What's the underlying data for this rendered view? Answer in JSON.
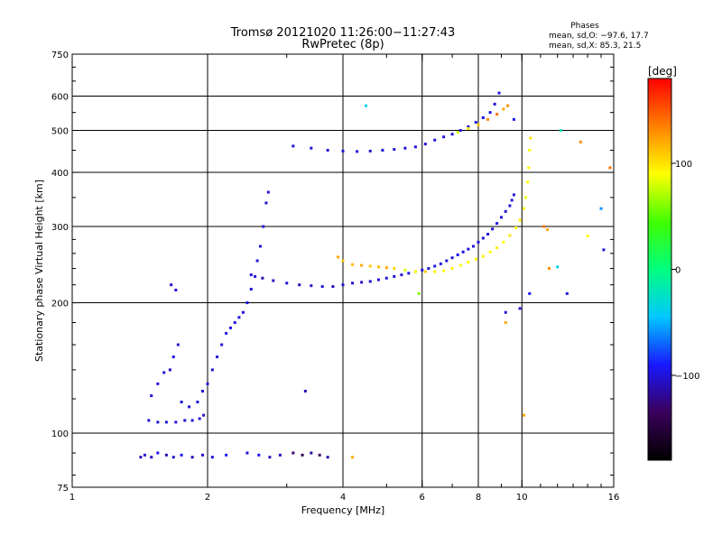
{
  "header": {
    "title_line1": "Tromsø 20121020 11:26:00−11:27:43",
    "title_line2": "RwPretec (8p)",
    "stats_title": "Phases",
    "stats_o": "mean, sd,O: −97.6, 17.7",
    "stats_x": "mean, sd,X:  85.3, 21.5"
  },
  "colorbar": {
    "label": "[deg]",
    "ticks": [
      {
        "value": 100,
        "label": "100"
      },
      {
        "value": 0,
        "label": "0"
      },
      {
        "value": -100,
        "label": "−100"
      }
    ],
    "range": [
      -180,
      180
    ],
    "stops": [
      "#000000",
      "#3a005a",
      "#1818ff",
      "#00c8ff",
      "#00ff7f",
      "#40ff00",
      "#ffff00",
      "#ff8000",
      "#ff0000"
    ]
  },
  "chart_data": {
    "type": "scatter",
    "xlabel": "Frequency [MHz]",
    "ylabel": "Stationary phase Virtual Height [km]",
    "xscale": "log",
    "yscale": "log",
    "xlim": [
      1,
      16
    ],
    "ylim": [
      75,
      750
    ],
    "xticks": [
      {
        "value": 1,
        "label": "1",
        "grid": false
      },
      {
        "value": 2,
        "label": "2",
        "grid": true
      },
      {
        "value": 4,
        "label": "4",
        "grid": true
      },
      {
        "value": 6,
        "label": "6",
        "grid": true
      },
      {
        "value": 8,
        "label": "8",
        "grid": true
      },
      {
        "value": 10,
        "label": "10",
        "grid": true
      },
      {
        "value": 16,
        "label": "16",
        "grid": false
      }
    ],
    "yticks": [
      {
        "value": 75,
        "label": "75",
        "grid": false
      },
      {
        "value": 100,
        "label": "100",
        "grid": true
      },
      {
        "value": 200,
        "label": "200",
        "grid": true
      },
      {
        "value": 300,
        "label": "300",
        "grid": true
      },
      {
        "value": 400,
        "label": "400",
        "grid": true
      },
      {
        "value": 500,
        "label": "500",
        "grid": true
      },
      {
        "value": 600,
        "label": "600",
        "grid": true
      },
      {
        "value": 750,
        "label": "750",
        "grid": false
      }
    ],
    "color_variable": "phase [deg]",
    "series": [
      {
        "points": [
          [
            1.42,
            88,
            -110
          ],
          [
            1.45,
            89,
            -100
          ],
          [
            1.5,
            88,
            -105
          ],
          [
            1.55,
            90,
            -95
          ],
          [
            1.62,
            89,
            -110
          ],
          [
            1.68,
            88,
            -100
          ],
          [
            1.75,
            89,
            -95
          ],
          [
            1.85,
            88,
            -110
          ],
          [
            1.95,
            89,
            -105
          ],
          [
            2.05,
            88,
            -100
          ],
          [
            2.2,
            89,
            -90
          ],
          [
            2.45,
            90,
            -100
          ],
          [
            2.6,
            89,
            -95
          ],
          [
            2.75,
            88,
            -105
          ],
          [
            2.9,
            89,
            -110
          ],
          [
            3.1,
            90,
            -130
          ],
          [
            3.25,
            89,
            -140
          ],
          [
            3.4,
            90,
            -120
          ],
          [
            3.55,
            89,
            -135
          ],
          [
            3.7,
            88,
            -110
          ]
        ]
      },
      {
        "points": [
          [
            1.48,
            107,
            -100
          ],
          [
            1.55,
            106,
            -100
          ],
          [
            1.62,
            106,
            -100
          ],
          [
            1.7,
            106,
            -100
          ],
          [
            1.78,
            107,
            -100
          ],
          [
            1.85,
            107,
            -100
          ],
          [
            1.92,
            108,
            -100
          ],
          [
            1.96,
            110,
            -105
          ]
        ]
      },
      {
        "points": [
          [
            1.5,
            122,
            -100
          ],
          [
            1.55,
            130,
            -100
          ],
          [
            1.6,
            138,
            -100
          ],
          [
            1.65,
            140,
            -105
          ],
          [
            1.68,
            150,
            -100
          ],
          [
            1.72,
            160,
            -100
          ],
          [
            1.66,
            220,
            -105
          ],
          [
            1.7,
            214,
            -100
          ],
          [
            1.75,
            118,
            -100
          ],
          [
            1.82,
            115,
            -100
          ],
          [
            1.9,
            118,
            -100
          ],
          [
            1.95,
            125,
            -100
          ],
          [
            2.0,
            130,
            -100
          ],
          [
            2.05,
            140,
            -100
          ],
          [
            2.1,
            150,
            -100
          ],
          [
            2.15,
            160,
            -100
          ],
          [
            2.2,
            170,
            -100
          ],
          [
            2.25,
            175,
            -100
          ],
          [
            2.3,
            180,
            -100
          ],
          [
            2.35,
            185,
            -100
          ],
          [
            2.4,
            190,
            -100
          ],
          [
            2.45,
            200,
            -100
          ],
          [
            2.5,
            215,
            -100
          ],
          [
            2.55,
            230,
            -100
          ],
          [
            2.58,
            250,
            -100
          ],
          [
            2.62,
            270,
            -100
          ],
          [
            2.66,
            300,
            -100
          ],
          [
            2.7,
            340,
            -100
          ],
          [
            2.73,
            360,
            -100
          ]
        ]
      },
      {
        "points": [
          [
            2.5,
            232,
            -100
          ],
          [
            2.65,
            228,
            -110
          ],
          [
            2.8,
            225,
            -105
          ],
          [
            3.0,
            222,
            -100
          ],
          [
            3.2,
            220,
            -110
          ],
          [
            3.4,
            219,
            -105
          ],
          [
            3.6,
            218,
            -100
          ],
          [
            3.8,
            218,
            -110
          ],
          [
            4.0,
            220,
            -100
          ],
          [
            4.2,
            222,
            -100
          ],
          [
            4.4,
            223,
            -105
          ],
          [
            4.6,
            224,
            -100
          ],
          [
            4.8,
            226,
            -100
          ],
          [
            5.0,
            228,
            -100
          ],
          [
            5.2,
            230,
            -100
          ],
          [
            5.4,
            232,
            -100
          ],
          [
            5.6,
            234,
            -100
          ],
          [
            5.8,
            236,
            -100
          ],
          [
            6.0,
            238,
            -100
          ],
          [
            6.2,
            240,
            -100
          ],
          [
            6.4,
            243,
            -100
          ],
          [
            6.6,
            246,
            -100
          ],
          [
            6.8,
            250,
            -100
          ],
          [
            7.0,
            254,
            -100
          ],
          [
            7.2,
            258,
            -100
          ],
          [
            7.4,
            262,
            -100
          ],
          [
            7.6,
            266,
            -100
          ],
          [
            7.8,
            270,
            -100
          ],
          [
            8.0,
            276,
            -100
          ],
          [
            8.2,
            282,
            -100
          ],
          [
            8.4,
            288,
            -100
          ],
          [
            8.6,
            296,
            -100
          ],
          [
            8.8,
            305,
            -100
          ],
          [
            9.0,
            315,
            -100
          ],
          [
            9.2,
            325,
            -100
          ],
          [
            9.4,
            335,
            -100
          ],
          [
            9.5,
            345,
            -100
          ],
          [
            9.6,
            355,
            -100
          ]
        ]
      },
      {
        "points": [
          [
            3.9,
            255,
            120
          ],
          [
            4.0,
            250,
            110
          ],
          [
            4.2,
            245,
            115
          ],
          [
            4.4,
            244,
            120
          ],
          [
            4.6,
            243,
            110
          ],
          [
            4.8,
            242,
            115
          ],
          [
            5.0,
            241,
            120
          ],
          [
            5.2,
            240,
            105
          ],
          [
            5.5,
            238,
            80
          ],
          [
            5.8,
            236,
            90
          ],
          [
            6.1,
            236,
            110
          ],
          [
            6.4,
            236,
            95
          ],
          [
            6.7,
            237,
            90
          ],
          [
            7.0,
            240,
            95
          ],
          [
            7.3,
            244,
            90
          ],
          [
            7.6,
            248,
            90
          ],
          [
            7.9,
            252,
            90
          ],
          [
            8.2,
            256,
            95
          ],
          [
            8.5,
            262,
            90
          ],
          [
            8.8,
            268,
            95
          ],
          [
            9.1,
            276,
            90
          ],
          [
            9.4,
            286,
            100
          ],
          [
            9.7,
            298,
            90
          ],
          [
            9.9,
            310,
            95
          ],
          [
            10.1,
            330,
            90
          ],
          [
            10.2,
            350,
            85
          ],
          [
            10.3,
            380,
            90
          ],
          [
            10.35,
            410,
            95
          ],
          [
            10.4,
            450,
            90
          ],
          [
            10.45,
            480,
            100
          ]
        ]
      },
      {
        "points": [
          [
            3.1,
            460,
            -100
          ],
          [
            3.4,
            455,
            -100
          ],
          [
            3.7,
            450,
            -100
          ],
          [
            4.0,
            448,
            -100
          ],
          [
            4.3,
            447,
            -100
          ],
          [
            4.6,
            448,
            -100
          ],
          [
            4.9,
            450,
            -100
          ],
          [
            5.2,
            452,
            -100
          ],
          [
            5.5,
            455,
            -100
          ],
          [
            5.8,
            458,
            -100
          ],
          [
            6.1,
            465,
            -100
          ],
          [
            6.4,
            475,
            -100
          ],
          [
            6.7,
            483,
            -100
          ],
          [
            7.0,
            490,
            -100
          ],
          [
            7.3,
            500,
            -100
          ],
          [
            7.6,
            510,
            -100
          ],
          [
            7.9,
            522,
            -100
          ],
          [
            8.2,
            535,
            -100
          ],
          [
            8.5,
            550,
            -100
          ],
          [
            8.7,
            575,
            -100
          ],
          [
            8.9,
            610,
            -100
          ]
        ]
      },
      {
        "points": [
          [
            7.2,
            495,
            80
          ],
          [
            7.6,
            505,
            100
          ],
          [
            8.0,
            515,
            110
          ],
          [
            8.4,
            530,
            130
          ],
          [
            8.8,
            545,
            140
          ],
          [
            9.1,
            560,
            120
          ],
          [
            9.3,
            570,
            130
          ]
        ]
      },
      {
        "points": [
          [
            4.5,
            570,
            -40
          ],
          [
            3.3,
            125,
            -110
          ],
          [
            4.2,
            88,
            120
          ],
          [
            5.9,
            210,
            60
          ],
          [
            9.2,
            190,
            -100
          ],
          [
            9.2,
            180,
            120
          ],
          [
            9.9,
            194,
            -100
          ],
          [
            10.1,
            110,
            120
          ],
          [
            10.4,
            210,
            -90
          ],
          [
            11.2,
            300,
            140
          ],
          [
            11.4,
            295,
            120
          ],
          [
            11.5,
            240,
            130
          ],
          [
            12.0,
            242,
            -40
          ],
          [
            12.2,
            500,
            -20
          ],
          [
            12.6,
            210,
            -100
          ],
          [
            13.5,
            470,
            130
          ],
          [
            14.0,
            285,
            90
          ],
          [
            15.0,
            330,
            -60
          ],
          [
            15.2,
            265,
            -100
          ],
          [
            15.7,
            410,
            140
          ],
          [
            9.6,
            530,
            -95
          ]
        ]
      }
    ]
  }
}
